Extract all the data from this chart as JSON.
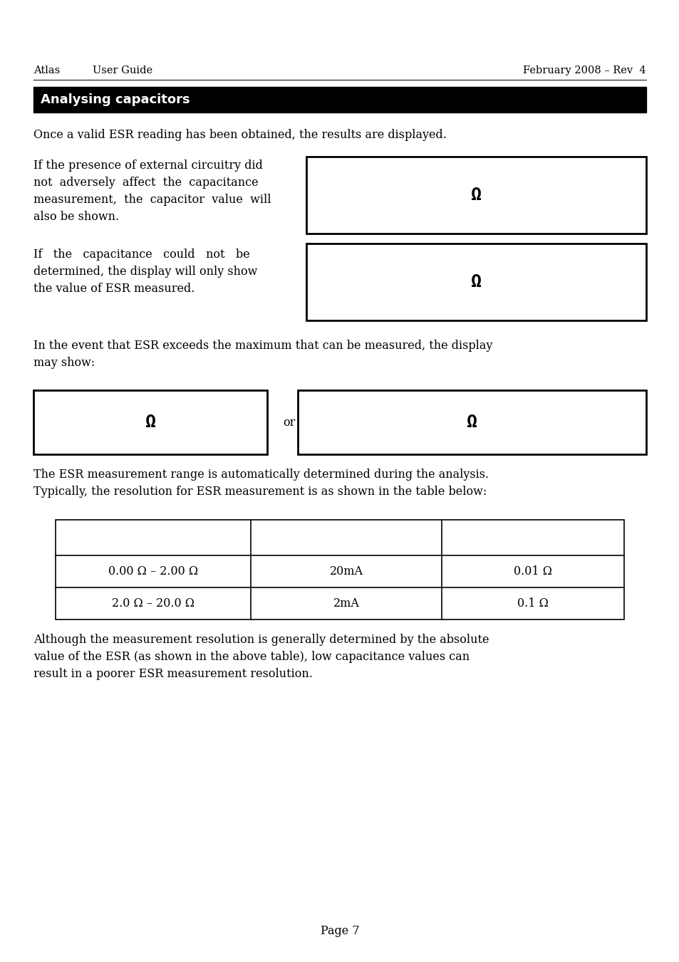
{
  "header_left1": "Atlas",
  "header_left2": "User Guide",
  "header_right": "February 2008 – Rev  4",
  "black_bar_text": "Analysing capacitors",
  "para1": "Once a valid ESR reading has been obtained, the results are displayed.",
  "para2_lines": [
    "If the presence of external circuitry did",
    "not  adversely  affect  the  capacitance",
    "measurement,  the  capacitor  value  will",
    "also be shown."
  ],
  "para3_lines": [
    "If   the   capacitance   could   not   be",
    "determined, the display will only show",
    "the value of ESR measured."
  ],
  "para4_lines": [
    "In the event that ESR exceeds the maximum that can be measured, the display",
    "may show:"
  ],
  "para5_lines": [
    "The ESR measurement range is automatically determined during the analysis.",
    "Typically, the resolution for ESR measurement is as shown in the table below:"
  ],
  "para6_lines": [
    "Although the measurement resolution is generally determined by the absolute",
    "value of the ESR (as shown in the above table), low capacitance values can",
    "result in a poorer ESR measurement resolution."
  ],
  "page_num": "Page 7",
  "omega": "Ω",
  "or_text": "or",
  "table_row1": [
    "0.00 Ω – 2.00 Ω",
    "20mA",
    "0.01 Ω"
  ],
  "table_row2": [
    "2.0 Ω – 20.0 Ω",
    "2mA",
    "0.1 Ω"
  ],
  "bg_color": "#ffffff",
  "text_color": "#000000",
  "bar_color": "#000000",
  "white_color": "#ffffff"
}
